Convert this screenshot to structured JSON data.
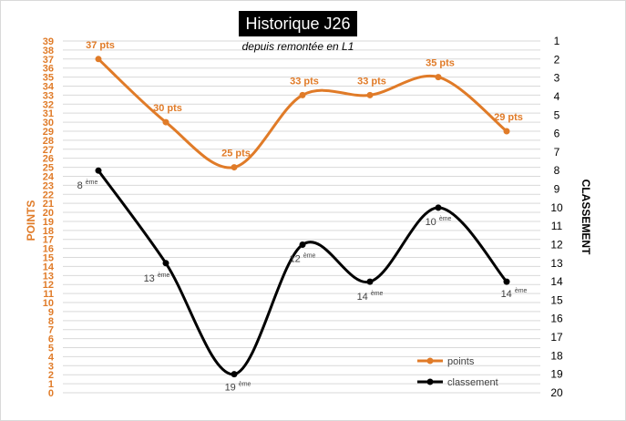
{
  "chart_data": {
    "type": "line",
    "title": "Historique J26",
    "subtitle": "depuis remontée en L1",
    "ylabel": "POINTS",
    "y2label": "CLASSEMENT",
    "ylim": [
      0,
      39
    ],
    "y2lim": [
      1,
      20
    ],
    "y2_inverted": true,
    "grid": true,
    "legend_position": "bottom-right",
    "y_ticks": [
      "0",
      "1",
      "2",
      "3",
      "4",
      "5",
      "6",
      "7",
      "8",
      "9",
      "10",
      "11",
      "12",
      "13",
      "14",
      "15",
      "16",
      "17",
      "18",
      "19",
      "20",
      "21",
      "22",
      "23",
      "24",
      "25",
      "26",
      "27",
      "28",
      "29",
      "30",
      "31",
      "32",
      "33",
      "34",
      "35",
      "36",
      "37",
      "38",
      "39"
    ],
    "y2_ticks": [
      "1",
      "2",
      "3",
      "4",
      "5",
      "6",
      "7",
      "8",
      "9",
      "10",
      "11",
      "12",
      "13",
      "14",
      "15",
      "16",
      "17",
      "18",
      "19",
      "20"
    ],
    "series": [
      {
        "name": "points",
        "axis": "left",
        "color": "#E07B28",
        "values": [
          37,
          30,
          25,
          33,
          33,
          35,
          29
        ],
        "labels": [
          "37 pts",
          "30 pts",
          "25 pts",
          "33 pts",
          "33 pts",
          "35 pts",
          "29 pts"
        ]
      },
      {
        "name": "classement",
        "axis": "right",
        "color": "#000000",
        "values": [
          8,
          13,
          19,
          12,
          14,
          10,
          14
        ],
        "labels": [
          "8",
          "13",
          "19",
          "12",
          "14",
          "10",
          "14"
        ],
        "label_suffix": "ème"
      }
    ]
  }
}
